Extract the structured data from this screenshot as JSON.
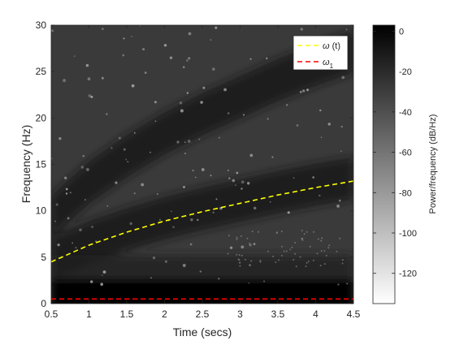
{
  "chart_data": {
    "type": "heatmap",
    "title": "",
    "xlabel": "Time (secs)",
    "ylabel": "Frequency (Hz)",
    "xlim": [
      0.5,
      4.5
    ],
    "ylim": [
      0,
      30
    ],
    "x_ticks": [
      0.5,
      1,
      1.5,
      2,
      2.5,
      3,
      3.5,
      4,
      4.5
    ],
    "x_tick_labels": [
      "0.5",
      "1",
      "1.5",
      "2",
      "2.5",
      "3",
      "3.5",
      "4",
      "4.5"
    ],
    "y_ticks": [
      0,
      5,
      10,
      15,
      20,
      25,
      30
    ],
    "y_tick_labels": [
      "0",
      "5",
      "10",
      "15",
      "20",
      "25",
      "30"
    ],
    "colormap": "gray (white = low power, black = high power)",
    "colorbar": {
      "label": "Power/frequency (dB/Hz)",
      "range": [
        -135,
        3
      ],
      "ticks": [
        0,
        -20,
        -40,
        -60,
        -80,
        -100,
        -120
      ],
      "tick_labels": [
        "0",
        "-20",
        "-40",
        "-60",
        "-80",
        "-100",
        "-120"
      ]
    },
    "legend": {
      "position": "top-right"
    },
    "series": [
      {
        "name": "ω (t)",
        "legend_main": "ω",
        "legend_suffix": " (t)",
        "color": "#ffff00",
        "style": "dashed",
        "x": [
          0.5,
          1.0,
          1.5,
          2.0,
          2.5,
          3.0,
          3.5,
          4.0,
          4.5
        ],
        "y": [
          4.5,
          6.3,
          7.7,
          8.9,
          9.9,
          10.8,
          11.7,
          12.5,
          13.2
        ]
      },
      {
        "name": "ω1",
        "legend_main": "ω",
        "legend_sub": "1",
        "color": "#ff0000",
        "style": "dashed",
        "x": [
          0.5,
          4.5
        ],
        "y": [
          0.5,
          0.5
        ]
      }
    ]
  }
}
